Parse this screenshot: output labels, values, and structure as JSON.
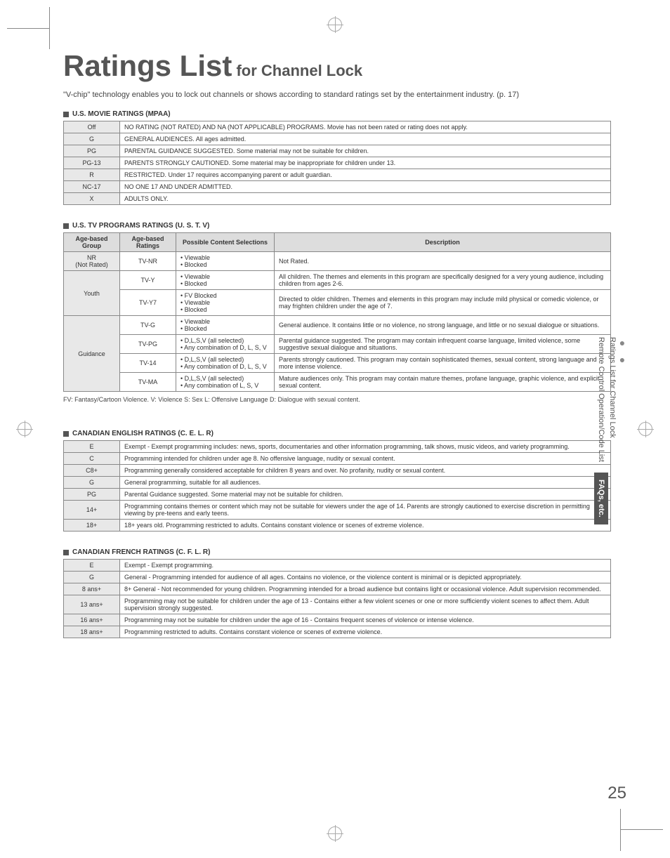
{
  "title_main": "Ratings List",
  "title_sub": " for Channel Lock",
  "intro": "\"V-chip\" technology enables you to lock out channels or shows according to standard ratings set by the entertainment industry. (p. 17)",
  "mpaa": {
    "header": "U.S. MOVIE RATINGS (MPAA)",
    "rows": [
      {
        "label": "Off",
        "desc": "NO RATING (NOT RATED) AND NA (NOT APPLICABLE) PROGRAMS. Movie has not been rated or rating does not apply."
      },
      {
        "label": "G",
        "desc": "GENERAL AUDIENCES. All ages admitted."
      },
      {
        "label": "PG",
        "desc": "PARENTAL GUIDANCE SUGGESTED. Some material may not be suitable for children."
      },
      {
        "label": "PG-13",
        "desc": "PARENTS STRONGLY CAUTIONED. Some material may be inappropriate for children under 13."
      },
      {
        "label": "R",
        "desc": "RESTRICTED. Under 17 requires accompanying parent or adult guardian."
      },
      {
        "label": "NC-17",
        "desc": "NO ONE 17 AND UNDER ADMITTED."
      },
      {
        "label": "X",
        "desc": "ADULTS ONLY."
      }
    ]
  },
  "ustv": {
    "header": "U.S. TV PROGRAMS RATINGS (U. S. T. V)",
    "cols": [
      "Age-based Group",
      "Age-based Ratings",
      "Possible Content Selections",
      "Description"
    ],
    "groups": [
      {
        "group": "NR\n(Not Rated)",
        "rows": [
          {
            "rating": "TV-NR",
            "content": [
              "Viewable",
              "Blocked"
            ],
            "desc": "Not Rated."
          }
        ]
      },
      {
        "group": "Youth",
        "rows": [
          {
            "rating": "TV-Y",
            "content": [
              "Viewable",
              "Blocked"
            ],
            "desc": "All children. The themes and elements in this program are specifically designed for a very young audience, including children from ages 2-6."
          },
          {
            "rating": "TV-Y7",
            "content": [
              "FV Blocked",
              "Viewable",
              "Blocked"
            ],
            "desc": "Directed to older children. Themes and elements in this program may include mild physical or comedic violence, or may frighten children under the age of 7."
          }
        ]
      },
      {
        "group": "Guidance",
        "rows": [
          {
            "rating": "TV-G",
            "content": [
              "Viewable",
              "Blocked"
            ],
            "desc": "General audience. It contains little or no violence, no strong language, and little or no sexual dialogue or situations."
          },
          {
            "rating": "TV-PG",
            "content": [
              "D,L,S,V (all selected)",
              "Any combination of D, L, S, V"
            ],
            "desc": "Parental guidance suggested. The program may contain infrequent coarse language, limited violence, some suggestive sexual dialogue and situations."
          },
          {
            "rating": "TV-14",
            "content": [
              "D,L,S,V (all selected)",
              "Any combination of D, L, S, V"
            ],
            "desc": "Parents strongly cautioned. This program may contain sophisticated themes, sexual content, strong language and more intense violence."
          },
          {
            "rating": "TV-MA",
            "content": [
              "D,L,S,V (all selected)",
              "Any combination of L, S, V"
            ],
            "desc": "Mature audiences only. This program may contain mature themes, profane language, graphic violence, and explicit sexual content."
          }
        ]
      }
    ],
    "legend": "FV: Fantasy/Cartoon Violence.     V: Violence     S: Sex     L: Offensive Language     D: Dialogue with sexual content."
  },
  "celr": {
    "header": "CANADIAN ENGLISH RATINGS (C. E. L. R)",
    "rows": [
      {
        "label": "E",
        "desc": "Exempt - Exempt programming includes: news, sports, documentaries and other information programming, talk shows, music videos, and variety programming."
      },
      {
        "label": "C",
        "desc": "Programming intended for children under age 8. No offensive language, nudity or sexual content."
      },
      {
        "label": "C8+",
        "desc": "Programming generally considered acceptable for children 8 years and over. No profanity, nudity or sexual content."
      },
      {
        "label": "G",
        "desc": "General programming, suitable for all audiences."
      },
      {
        "label": "PG",
        "desc": "Parental Guidance suggested. Some material may not be suitable for children."
      },
      {
        "label": "14+",
        "desc": "Programming contains themes or content which may not be suitable for viewers under the age of 14. Parents are strongly cautioned to exercise discretion in permitting viewing by pre-teens and early teens."
      },
      {
        "label": "18+",
        "desc": "18+ years old. Programming restricted to adults. Contains constant violence or scenes of extreme violence."
      }
    ]
  },
  "cflr": {
    "header": "CANADIAN FRENCH RATINGS (C. F. L. R)",
    "rows": [
      {
        "label": "E",
        "desc": "Exempt - Exempt programming."
      },
      {
        "label": "G",
        "desc": "General - Programming intended for audience of all ages. Contains no violence, or the violence content is minimal or is depicted appropriately."
      },
      {
        "label": "8 ans+",
        "desc": "8+ General - Not recommended for young children. Programming intended for a broad audience but contains light or occasional violence. Adult supervision recommended."
      },
      {
        "label": "13 ans+",
        "desc": "Programming may not be suitable for children under the age of 13 - Contains either a few violent scenes or one or more sufficiently violent scenes to affect them. Adult supervision strongly suggested."
      },
      {
        "label": "16 ans+",
        "desc": "Programming may not be suitable for children under the age of 16 - Contains frequent scenes of violence or intense violence."
      },
      {
        "label": "18 ans+",
        "desc": "Programming restricted to adults. Contains constant violence or scenes of extreme violence."
      }
    ]
  },
  "side": {
    "dots": "●  ●",
    "line1": "Ratings List for Channel Lock",
    "line2": "Remote Control Operation/Code List",
    "tab": "FAQs, etc."
  },
  "page_num": "25"
}
